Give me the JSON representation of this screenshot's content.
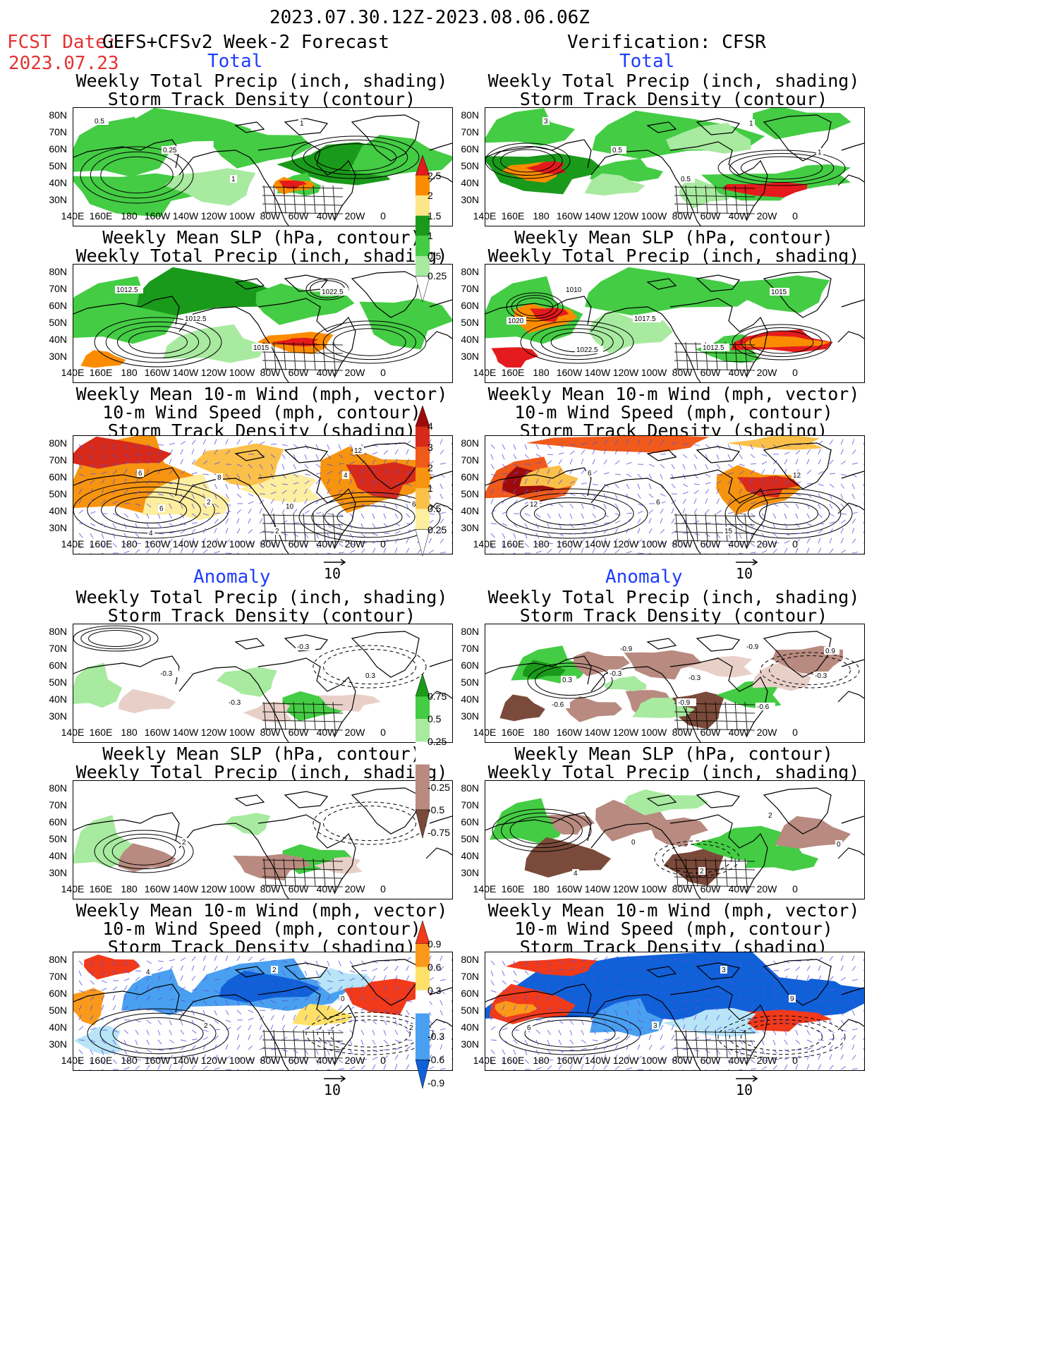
{
  "header": {
    "period": "2023.07.30.12Z-2023.08.06.06Z",
    "fcst_label": "FCST Date:",
    "fcst_model": "GEFS+CFSv2 Week-2 Forecast",
    "fcst_date": "2023.07.23",
    "verification": "Verification: CFSR"
  },
  "sections": {
    "total": "Total",
    "anomaly": "Anomaly"
  },
  "panel_titles": {
    "precip_storm": [
      "Weekly Total Precip (inch, shading)",
      "Storm Track Density (contour)"
    ],
    "slp_precip": [
      "Weekly Mean SLP (hPa, contour)",
      "Weekly Total Precip (inch, shading)"
    ],
    "wind": [
      "Weekly Mean 10-m Wind (mph, vector)",
      "10-m Wind Speed (mph, contour)",
      "Storm Track Density (shading)"
    ]
  },
  "axes": {
    "lat": [
      "80N",
      "70N",
      "60N",
      "50N",
      "40N",
      "30N"
    ],
    "lon": [
      "140E",
      "160E",
      "180",
      "160W",
      "140W",
      "120W",
      "100W",
      "80W",
      "60W",
      "40W",
      "20W",
      "0"
    ]
  },
  "vector_ref": "10",
  "colorbars": {
    "total_precip": {
      "labels": [
        "2.5",
        "2",
        "1.5",
        "1",
        "0.5",
        "0.25"
      ],
      "colors": [
        "#e41a1c",
        "#fb8c00",
        "#fde58a",
        "#1a9a1a",
        "#44cc44",
        "#a8eaa0"
      ]
    },
    "total_storm": {
      "labels": [
        "4",
        "3",
        "2",
        "1",
        "0.5",
        "0.25"
      ],
      "colors": [
        "#9e0a0a",
        "#d72a1a",
        "#f05a1a",
        "#f7940f",
        "#fbc04a",
        "#fdeea0"
      ]
    },
    "anom_precip": {
      "labels": [
        "0.75",
        "0.5",
        "0.25",
        "-0.25",
        "-0.5",
        "-0.75"
      ],
      "colors": [
        "#1a9a1a",
        "#44cc44",
        "#a8eaa0",
        "#e8d0c8",
        "#b88a80",
        "#7a4a3a"
      ]
    },
    "anom_storm": {
      "labels": [
        "0.9",
        "0.6",
        "0.3",
        "-0.3",
        "-0.6",
        "-0.9"
      ],
      "colors": [
        "#f03a1a",
        "#fb9a1a",
        "#fde068",
        "#b8e4f8",
        "#4aa0f0",
        "#1060d8"
      ]
    }
  },
  "contour_labels": {
    "fcst_precip_storm": [
      "0.5",
      "0.25",
      "1",
      "1"
    ],
    "fcst_slp": [
      "1012.5",
      "1012.5",
      "1015",
      "1022.5"
    ],
    "ver_precip_storm": [
      "3",
      "0.5",
      "0.5",
      "1",
      "1"
    ],
    "ver_slp": [
      "1010",
      "1017.5",
      "1012.5",
      "1015",
      "1020",
      "1022.5"
    ],
    "fcst_wind": [
      "6",
      "2",
      "2",
      "4",
      "6",
      "4",
      "8",
      "10",
      "12",
      "8",
      "6"
    ],
    "ver_wind": [
      "6",
      "6",
      "15",
      "12",
      "12"
    ],
    "fcst_anom_precip": [
      "-0.3",
      "-0.3",
      "-0.3",
      "0.3"
    ],
    "ver_anom_precip": [
      "-0.3",
      "-0.9",
      "-0.9",
      "-0.3",
      "-0.6",
      "-0.9",
      "-0.3",
      "-0.6",
      "0.9",
      "0.3"
    ],
    "fcst_anom_slp": [
      "2"
    ],
    "ver_anom_slp": [
      "0",
      "2",
      "2",
      "0",
      "4"
    ],
    "fcst_anom_wind": [
      "2",
      "2",
      "0",
      "2",
      "4"
    ],
    "ver_anom_wind": [
      "3",
      "3",
      "9",
      "6"
    ]
  }
}
